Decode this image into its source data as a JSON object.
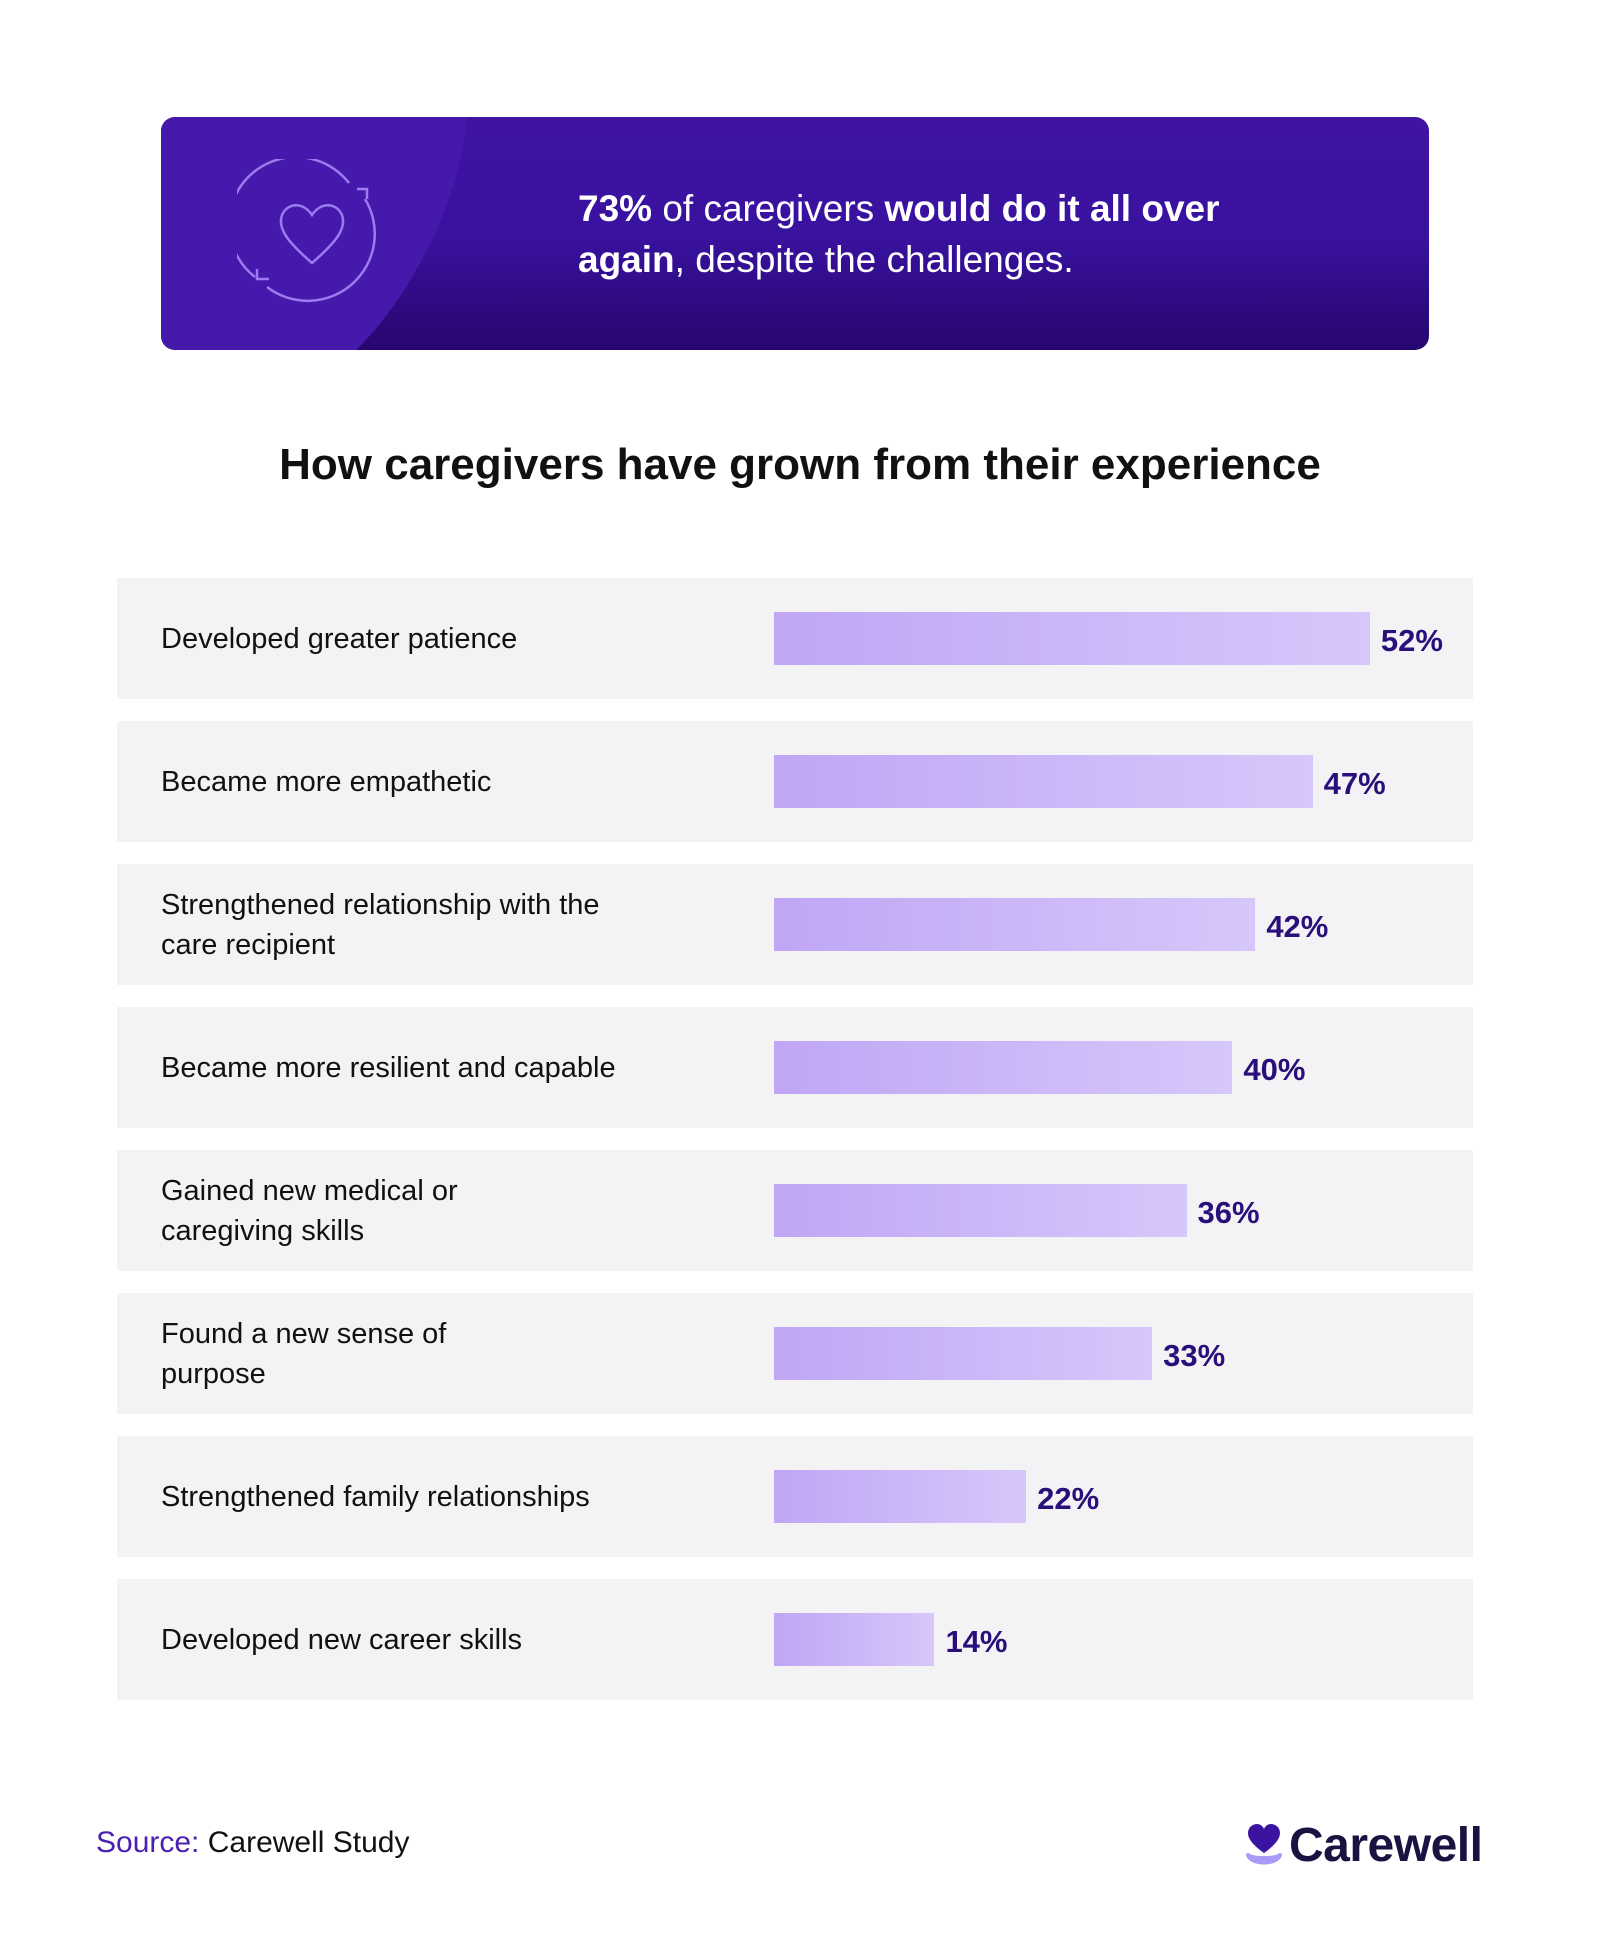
{
  "banner": {
    "stat": "73%",
    "text_1": " of caregivers ",
    "bold_1": "would do it all over",
    "bold_2": "again",
    "text_2": ", despite the challenges.",
    "icon": "heart-cycle-icon"
  },
  "chart_data": {
    "type": "bar",
    "orientation": "horizontal",
    "title": "How caregivers have grown from their experience",
    "categories": [
      "Developed greater patience",
      "Became more empathetic",
      "Strengthened relationship with the care recipient",
      "Became more resilient and capable",
      "Gained new medical or caregiving skills",
      "Found a new sense of purpose",
      "Strengthened family relationships",
      "Developed new career skills"
    ],
    "values": [
      52,
      47,
      42,
      40,
      36,
      33,
      22,
      14
    ],
    "value_labels": [
      "52%",
      "47%",
      "42%",
      "40%",
      "36%",
      "33%",
      "22%",
      "14%"
    ],
    "unit": "%",
    "grid": false,
    "bar_color_start": "#c0a6f5",
    "bar_color_end": "#d6c7fa",
    "label_color": "#2a0f7a"
  },
  "footer": {
    "source_key": "Source:",
    "source_value": " Carewell Study",
    "logo_text": "Carewell"
  }
}
